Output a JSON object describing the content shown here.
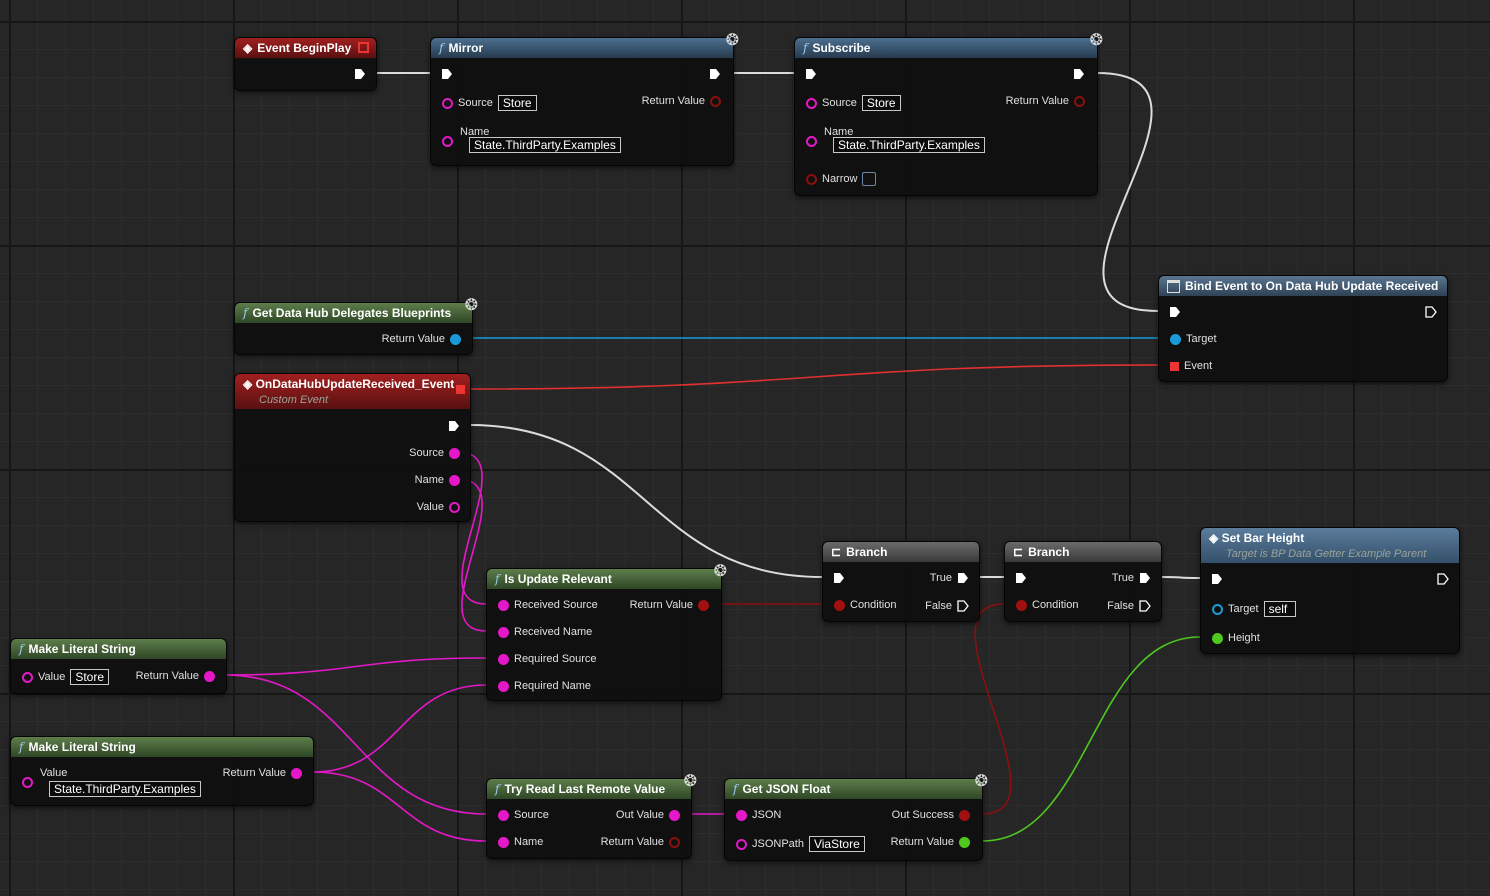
{
  "colors": {
    "exec": "#dcdcdc",
    "string": "#e418c8",
    "object": "#1a9ad6",
    "delegate": "#e03030",
    "bool": "#8c0f0f",
    "float": "#4fc81f"
  },
  "nodes": {
    "begin_play": {
      "title": "Event BeginPlay",
      "icon": "event-icon"
    },
    "mirror": {
      "title": "Mirror",
      "source_label": "Source",
      "source_value": "Store",
      "name_label": "Name",
      "name_value": "State.ThirdParty.Examples",
      "return_label": "Return Value"
    },
    "subscribe": {
      "title": "Subscribe",
      "source_label": "Source",
      "source_value": "Store",
      "name_label": "Name",
      "name_value": "State.ThirdParty.Examples",
      "narrow_label": "Narrow",
      "narrow_checked": false,
      "return_label": "Return Value"
    },
    "get_delegates": {
      "title": "Get Data Hub Delegates Blueprints",
      "return_label": "Return Value"
    },
    "custom_event": {
      "title": "OnDataHubUpdateReceived_Event",
      "subtitle": "Custom Event",
      "source_label": "Source",
      "name_label": "Name",
      "value_label": "Value"
    },
    "bind_event": {
      "title": "Bind Event to On Data Hub Update Received",
      "target_label": "Target",
      "event_label": "Event"
    },
    "is_relevant": {
      "title": "Is Update Relevant",
      "pins": [
        "Received Source",
        "Received Name",
        "Required Source",
        "Required Name"
      ],
      "return_label": "Return Value"
    },
    "branch1": {
      "title": "Branch",
      "condition_label": "Condition",
      "true_label": "True",
      "false_label": "False"
    },
    "branch2": {
      "title": "Branch",
      "condition_label": "Condition",
      "true_label": "True",
      "false_label": "False"
    },
    "set_bar_height": {
      "title": "Set Bar Height",
      "subtitle": "Target is BP Data Getter Example Parent",
      "target_label": "Target",
      "target_value": "self",
      "height_label": "Height"
    },
    "literal1": {
      "title": "Make Literal String",
      "value_label": "Value",
      "value": "Store",
      "return_label": "Return Value"
    },
    "literal2": {
      "title": "Make Literal String",
      "value_label": "Value",
      "value": "State.ThirdParty.Examples",
      "return_label": "Return Value"
    },
    "try_read": {
      "title": "Try Read Last Remote Value",
      "source_label": "Source",
      "name_label": "Name",
      "out_value_label": "Out Value",
      "return_label": "Return Value"
    },
    "get_json_float": {
      "title": "Get JSON Float",
      "json_label": "JSON",
      "jsonpath_label": "JSONPath",
      "jsonpath_value": "ViaStore",
      "out_success_label": "Out Success",
      "return_label": "Return Value"
    }
  }
}
